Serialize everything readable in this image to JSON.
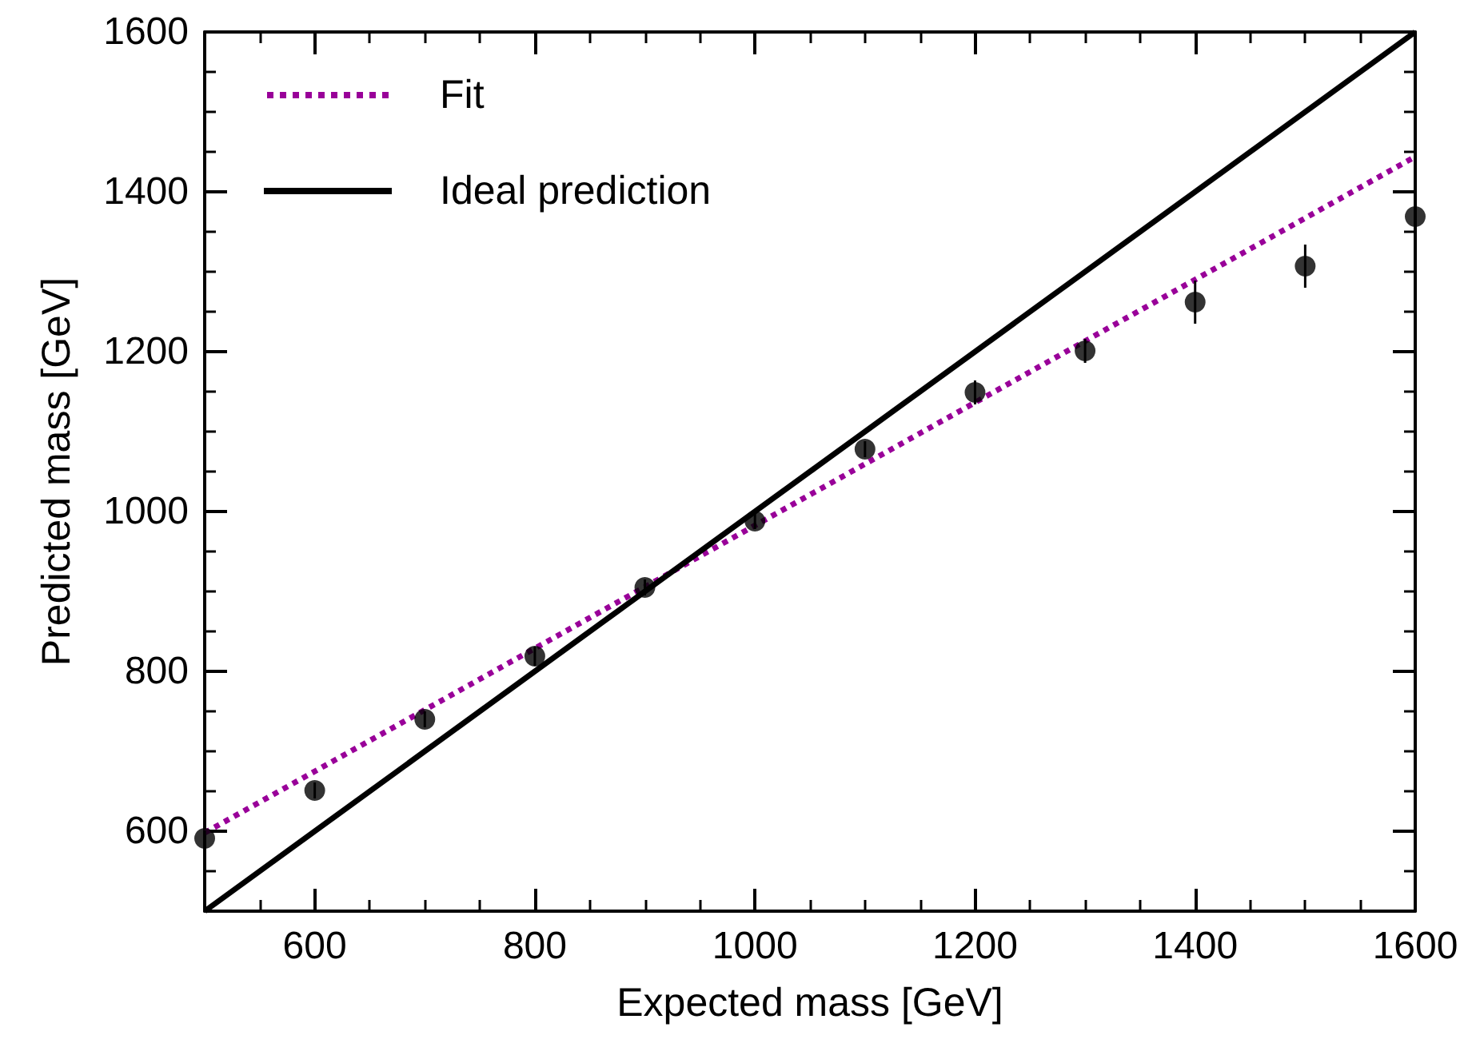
{
  "chart_data": {
    "type": "scatter",
    "xlabel": "Expected mass [GeV]",
    "ylabel": "Predicted mass [GeV]",
    "xlim": [
      500,
      1600
    ],
    "xticks": [
      600,
      800,
      1000,
      1200,
      1400,
      1600
    ],
    "ylim": [
      500,
      1600
    ],
    "yticks": [
      600,
      800,
      1000,
      1200,
      1400,
      1600
    ],
    "grid": false,
    "legend": "top left",
    "marker": "circle",
    "series": [
      {
        "color": "#000000",
        "x": [
          500,
          600,
          700,
          800,
          900,
          1000,
          1100,
          1200,
          1300,
          1400,
          1500,
          1600
        ],
        "values": [
          591,
          651,
          740,
          819,
          905,
          988,
          1078,
          1149,
          1201,
          1262,
          1307,
          1369
        ],
        "errors": [
          10,
          10,
          10,
          12,
          10,
          10,
          10,
          15,
          15,
          27,
          27,
          31
        ]
      },
      {
        "type": "line",
        "name": "Fit",
        "color": "#990099",
        "line_style": "dotted",
        "marker": "none",
        "x": [
          500,
          1600
        ],
        "values": [
          598,
          1444
        ]
      },
      {
        "type": "line",
        "name": "Ideal prediction",
        "color": "#000000",
        "line_style": "solid",
        "marker": "none",
        "x": [
          500,
          1600
        ],
        "values": [
          500,
          1600
        ]
      }
    ]
  }
}
